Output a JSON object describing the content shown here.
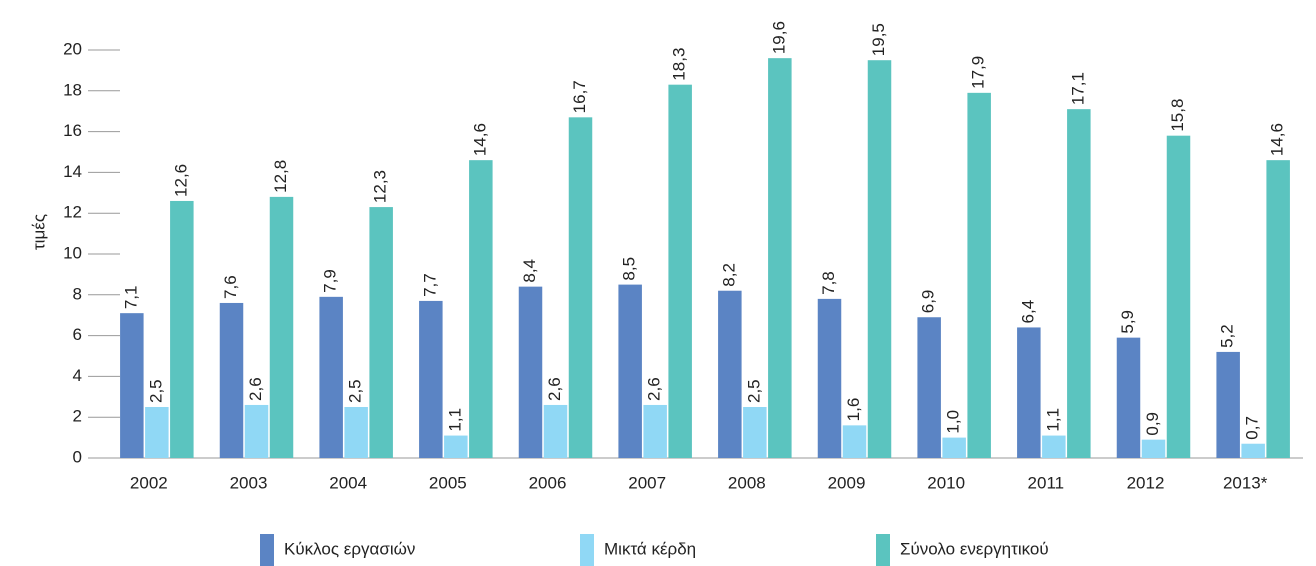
{
  "chart_data": {
    "type": "bar",
    "ylabel": "τιμές",
    "categories": [
      "2002",
      "2003",
      "2004",
      "2005",
      "2006",
      "2007",
      "2008",
      "2009",
      "2010",
      "2011",
      "2012",
      "2013*"
    ],
    "series": [
      {
        "name": "Κύκλος εργασιών",
        "color": "#5b84c4",
        "values": [
          7.1,
          7.6,
          7.9,
          7.7,
          8.4,
          8.5,
          8.2,
          7.8,
          6.9,
          6.4,
          5.9,
          5.2
        ],
        "value_labels": [
          "7,1",
          "7,6",
          "7,9",
          "7,7",
          "8,4",
          "8,5",
          "8,2",
          "7,8",
          "6,9",
          "6,4",
          "5,9",
          "5,2"
        ]
      },
      {
        "name": "Μικτά κέρδη",
        "color": "#90d8f5",
        "values": [
          2.5,
          2.6,
          2.5,
          1.1,
          2.6,
          2.6,
          2.5,
          1.6,
          1.0,
          1.1,
          0.9,
          0.7
        ],
        "value_labels": [
          "2,5",
          "2,6",
          "2,5",
          "1,1",
          "2,6",
          "2,6",
          "2,5",
          "1,6",
          "1,0",
          "1,1",
          "0,9",
          "0,7"
        ]
      },
      {
        "name": "Σύνολο ενεργητικού",
        "color": "#5bc4bf",
        "values": [
          12.6,
          12.8,
          12.3,
          14.6,
          16.7,
          18.3,
          19.6,
          19.5,
          17.9,
          17.1,
          15.8,
          14.6
        ],
        "value_labels": [
          "12,6",
          "12,8",
          "12,3",
          "14,6",
          "16,7",
          "18,3",
          "19,6",
          "19,5",
          "17,9",
          "17,1",
          "15,8",
          "14,6"
        ]
      }
    ],
    "ylim": [
      0,
      20
    ],
    "yticks": [
      0,
      2,
      4,
      6,
      8,
      10,
      12,
      14,
      16,
      18,
      20
    ],
    "legend": "bottom"
  }
}
